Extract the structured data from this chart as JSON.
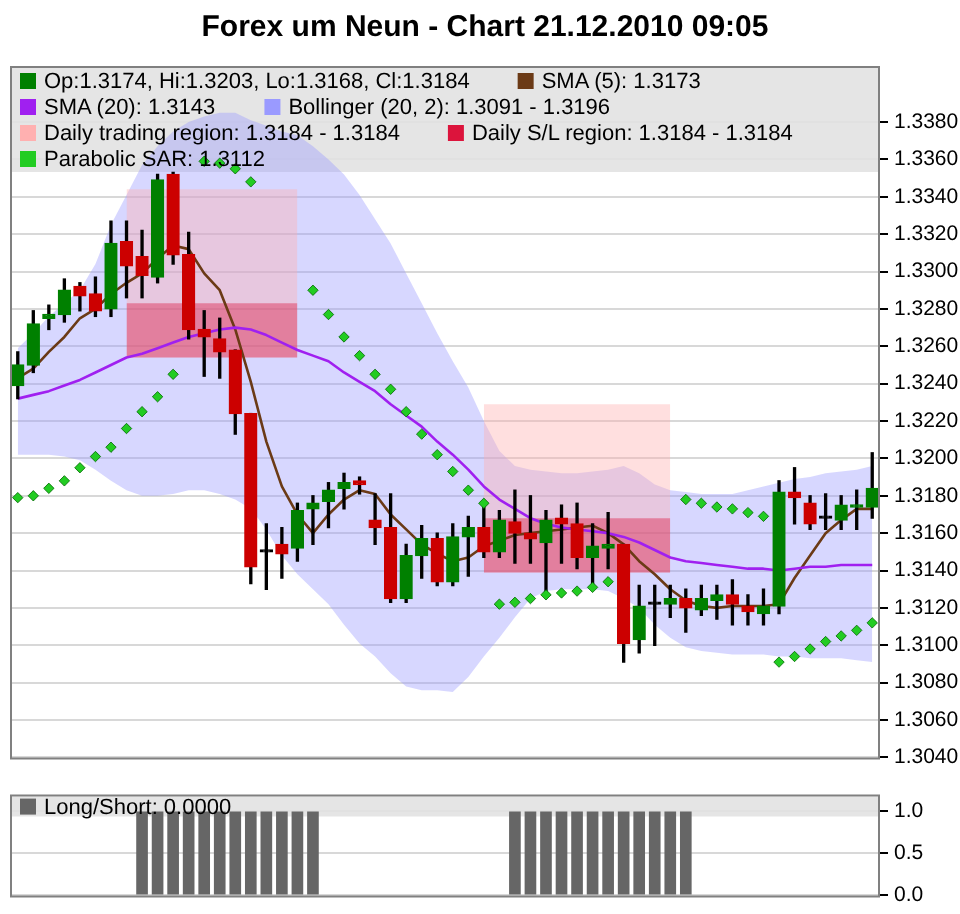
{
  "chart_data": [
    {
      "type": "candlestick",
      "title": "Forex um Neun - Chart 21.12.2010 09:05",
      "categories": [
        null,
        null,
        null,
        null,
        null,
        null,
        null,
        null,
        null,
        null,
        null,
        null,
        null,
        null,
        null,
        null,
        null,
        null,
        null,
        null,
        null,
        null,
        null,
        null,
        null,
        null,
        null,
        null,
        null,
        null,
        null,
        null,
        null,
        null,
        null,
        null,
        null,
        null,
        null,
        null,
        null,
        null,
        null,
        null,
        null,
        null,
        null,
        null,
        null,
        null,
        null,
        null,
        null,
        null,
        null,
        null
      ],
      "series": [
        {
          "type": "candlestick",
          "name": "Op:1.3174, Hi:1.3203, Lo:1.3168, Cl:1.3184",
          "color": "#008000",
          "colors": [
            "#008000",
            "#008000",
            "#008000",
            "#008000",
            "#cc0000",
            "#cc0000",
            "#008000",
            "#cc0000",
            "#cc0000",
            "#008000",
            "#cc0000",
            "#cc0000",
            "#cc0000",
            "#cc0000",
            "#cc0000",
            "#cc0000",
            "#000000",
            "#cc0000",
            "#008000",
            "#008000",
            "#008000",
            "#008000",
            "#cc0000",
            "#cc0000",
            "#cc0000",
            "#008000",
            "#008000",
            "#cc0000",
            "#008000",
            "#008000",
            "#cc0000",
            "#008000",
            "#cc0000",
            "#cc0000",
            "#008000",
            "#cc0000",
            "#cc0000",
            "#008000",
            "#008000",
            "#cc0000",
            "#008000",
            "#000000",
            "#008000",
            "#cc0000",
            "#008000",
            "#008000",
            "#cc0000",
            "#cc0000",
            "#008000",
            "#008000",
            "#cc0000",
            "#cc0000",
            "#000000",
            "#008000",
            "#008000",
            "#008000"
          ],
          "ohlc": [
            [
              1.3239,
              1.3257,
              1.3232,
              1.325
            ],
            [
              1.325,
              1.3279,
              1.3246,
              1.3272
            ],
            [
              1.3275,
              1.3282,
              1.3269,
              1.3277
            ],
            [
              1.3277,
              1.3296,
              1.3273,
              1.329
            ],
            [
              1.3292,
              1.3294,
              1.3279,
              1.3287
            ],
            [
              1.3288,
              1.3297,
              1.3276,
              1.3279
            ],
            [
              1.328,
              1.3327,
              1.3276,
              1.3315
            ],
            [
              1.3316,
              1.3327,
              1.3286,
              1.3303
            ],
            [
              1.3308,
              1.3322,
              1.3286,
              1.3298
            ],
            [
              1.3297,
              1.3352,
              1.3294,
              1.3349
            ],
            [
              1.3352,
              1.3353,
              1.3304,
              1.3309
            ],
            [
              1.3309,
              1.3321,
              1.3264,
              1.3269
            ],
            [
              1.3269,
              1.3279,
              1.3244,
              1.3265
            ],
            [
              1.3264,
              1.3275,
              1.3243,
              1.3257
            ],
            [
              1.3258,
              1.3258,
              1.3213,
              1.3224
            ],
            [
              1.3224,
              1.3224,
              1.3133,
              1.3142
            ],
            [
              1.315,
              1.3165,
              1.313,
              1.315
            ],
            [
              1.3154,
              1.3163,
              1.3136,
              1.3149
            ],
            [
              1.3152,
              1.3176,
              1.3145,
              1.3172
            ],
            [
              1.3173,
              1.318,
              1.3154,
              1.3176
            ],
            [
              1.3177,
              1.3187,
              1.3163,
              1.3183
            ],
            [
              1.3184,
              1.3192,
              1.3173,
              1.3187
            ],
            [
              1.3188,
              1.319,
              1.3181,
              1.3186
            ],
            [
              1.3167,
              1.3181,
              1.3154,
              1.3163
            ],
            [
              1.3163,
              1.3181,
              1.3123,
              1.3125
            ],
            [
              1.3125,
              1.3154,
              1.3123,
              1.3148
            ],
            [
              1.3148,
              1.3164,
              1.3136,
              1.3157
            ],
            [
              1.3157,
              1.316,
              1.3132,
              1.3134
            ],
            [
              1.3134,
              1.3165,
              1.3132,
              1.3158
            ],
            [
              1.3158,
              1.3169,
              1.3137,
              1.3163
            ],
            [
              1.3163,
              1.3176,
              1.3147,
              1.315
            ],
            [
              1.315,
              1.3172,
              1.3147,
              1.3167
            ],
            [
              1.3166,
              1.3183,
              1.3144,
              1.316
            ],
            [
              1.316,
              1.318,
              1.3144,
              1.3157
            ],
            [
              1.3155,
              1.3172,
              1.3128,
              1.3167
            ],
            [
              1.3168,
              1.3175,
              1.3144,
              1.3165
            ],
            [
              1.3165,
              1.3176,
              1.3141,
              1.3147
            ],
            [
              1.3147,
              1.3165,
              1.3132,
              1.3153
            ],
            [
              1.3152,
              1.3171,
              1.3141,
              1.3154
            ],
            [
              1.3154,
              1.3154,
              1.3091,
              1.3101
            ],
            [
              1.3103,
              1.3132,
              1.3096,
              1.3121
            ],
            [
              1.3122,
              1.3132,
              1.31,
              1.3122
            ],
            [
              1.3122,
              1.3132,
              1.3115,
              1.3125
            ],
            [
              1.3125,
              1.313,
              1.3107,
              1.312
            ],
            [
              1.3119,
              1.3132,
              1.3116,
              1.3125
            ],
            [
              1.3124,
              1.3132,
              1.3114,
              1.3127
            ],
            [
              1.3127,
              1.3135,
              1.3111,
              1.3122
            ],
            [
              1.3121,
              1.3127,
              1.3111,
              1.3118
            ],
            [
              1.3117,
              1.313,
              1.3111,
              1.3121
            ],
            [
              1.3121,
              1.3188,
              1.3117,
              1.3182
            ],
            [
              1.3182,
              1.3195,
              1.3165,
              1.3179
            ],
            [
              1.3176,
              1.318,
              1.3162,
              1.3165
            ],
            [
              1.3168,
              1.3181,
              1.3162,
              1.3168
            ],
            [
              1.3167,
              1.318,
              1.3162,
              1.3175
            ],
            [
              1.3174,
              1.3183,
              1.3162,
              1.3175
            ],
            [
              1.3174,
              1.3203,
              1.3168,
              1.3184
            ]
          ]
        },
        {
          "type": "line",
          "name": "SMA (5): 1.3173",
          "color": "#6b3a16",
          "values": [
            1.3243,
            1.3248,
            1.3257,
            1.3265,
            1.3275,
            1.328,
            1.3288,
            1.3294,
            1.3299,
            1.3307,
            1.3314,
            1.3312,
            1.3299,
            1.329,
            1.3269,
            1.3241,
            1.3209,
            1.3185,
            1.317,
            1.316,
            1.317,
            1.3178,
            1.3183,
            1.3181,
            1.317,
            1.3162,
            1.3154,
            1.3149,
            1.3145,
            1.3147,
            1.3153,
            1.3156,
            1.3159,
            1.316,
            1.3161,
            1.3162,
            1.3163,
            1.3164,
            1.316,
            1.3154,
            1.3145,
            1.3138,
            1.313,
            1.3124,
            1.3121,
            1.312,
            1.3121,
            1.3121,
            1.3121,
            1.3122,
            1.3136,
            1.3148,
            1.316,
            1.3167,
            1.3173,
            1.3173
          ]
        },
        {
          "type": "line",
          "name": "SMA (20): 1.3143",
          "color": "#a020f0",
          "values": [
            1.3232,
            1.3234,
            1.3236,
            1.3239,
            1.3242,
            1.3246,
            1.325,
            1.3254,
            1.3256,
            1.3259,
            1.3262,
            1.3265,
            1.3267,
            1.3269,
            1.327,
            1.3269,
            1.3266,
            1.3262,
            1.3258,
            1.3255,
            1.3252,
            1.3246,
            1.3241,
            1.3236,
            1.3229,
            1.3223,
            1.3217,
            1.3209,
            1.3202,
            1.3194,
            1.3185,
            1.3178,
            1.3173,
            1.3168,
            1.3165,
            1.3163,
            1.3162,
            1.3161,
            1.316,
            1.3158,
            1.3155,
            1.3151,
            1.3147,
            1.3145,
            1.3144,
            1.3143,
            1.3142,
            1.3141,
            1.3141,
            1.314,
            1.3141,
            1.3142,
            1.3142,
            1.3143,
            1.3143,
            1.3143
          ]
        },
        {
          "type": "line",
          "name": "Bollinger (20, 2): 1.3091 - 1.3196",
          "color": "#9a9aff",
          "values": [
            null,
            null,
            null,
            null,
            null,
            null,
            null,
            null,
            null,
            null,
            null,
            null,
            null,
            null,
            null,
            null,
            null,
            null,
            null,
            null,
            null,
            null,
            null,
            null,
            null,
            null,
            null,
            null,
            null,
            null,
            null,
            null,
            null,
            null,
            null,
            null,
            null,
            null,
            null,
            null,
            null,
            null,
            null,
            null,
            null,
            null,
            null,
            null,
            null,
            null,
            null,
            null,
            null,
            null,
            null,
            null
          ],
          "upper": [
            1.3259,
            1.3267,
            1.3276,
            1.3283,
            1.329,
            1.3304,
            1.3325,
            1.3341,
            1.3357,
            1.3367,
            1.3375,
            1.338,
            1.3383,
            1.3385,
            1.3385,
            1.3381,
            1.3378,
            1.3375,
            1.3373,
            1.3367,
            1.336,
            1.3352,
            1.3341,
            1.3328,
            1.3315,
            1.3299,
            1.3283,
            1.3267,
            1.3252,
            1.3238,
            1.322,
            1.3204,
            1.3196,
            1.3194,
            1.3193,
            1.3192,
            1.3192,
            1.3193,
            1.3194,
            1.3196,
            1.3192,
            1.3186,
            1.3183,
            1.3182,
            1.3181,
            1.3181,
            1.3181,
            1.3183,
            1.3185,
            1.3187,
            1.3189,
            1.319,
            1.3192,
            1.3193,
            1.3194,
            1.3196
          ],
          "lower": [
            1.3202,
            1.3202,
            1.3202,
            1.3201,
            1.3199,
            1.3194,
            1.3188,
            1.3183,
            1.318,
            1.318,
            1.3181,
            1.3183,
            1.3183,
            1.3181,
            1.3178,
            1.3173,
            1.3162,
            1.3148,
            1.3138,
            1.313,
            1.3122,
            1.3111,
            1.3101,
            1.3094,
            1.3085,
            1.3078,
            1.3076,
            1.3076,
            1.3075,
            1.3083,
            1.3094,
            1.3104,
            1.3115,
            1.3125,
            1.3129,
            1.313,
            1.313,
            1.313,
            1.3129,
            1.3125,
            1.312,
            1.3111,
            1.3104,
            1.3099,
            1.3097,
            1.3096,
            1.3095,
            1.3095,
            1.3095,
            1.3094,
            1.3094,
            1.3093,
            1.3093,
            1.3093,
            1.3092,
            1.3091
          ]
        },
        {
          "type": "line",
          "name": "Daily trading region: 1.3184 - 1.3184",
          "color": "#ffb0b0",
          "values": [
            null,
            null,
            null,
            null,
            null,
            null,
            null,
            null,
            null,
            null,
            null,
            null,
            null,
            null,
            null,
            null,
            null,
            null,
            null,
            null,
            null,
            null,
            null,
            null,
            null,
            null,
            null,
            null,
            null,
            null,
            null,
            null,
            null,
            null,
            null,
            null,
            null,
            null,
            null,
            null,
            null,
            null,
            null,
            null,
            null,
            null,
            null,
            null,
            null,
            null,
            null,
            null,
            null,
            null,
            null,
            null
          ],
          "upper": [
            null,
            null,
            null,
            null,
            null,
            null,
            null,
            1.3344,
            1.3344,
            1.3344,
            1.3344,
            1.3344,
            1.3344,
            1.3344,
            1.3344,
            1.3344,
            1.3344,
            1.3344,
            1.3344,
            null,
            null,
            null,
            null,
            null,
            null,
            null,
            null,
            null,
            null,
            null,
            1.3229,
            1.3229,
            1.3229,
            1.3229,
            1.3229,
            1.3229,
            1.3229,
            1.3229,
            1.3229,
            1.3229,
            1.3229,
            1.3229,
            1.3229,
            null,
            null,
            null,
            null,
            null,
            null,
            null,
            null,
            null,
            null,
            null,
            null,
            null
          ],
          "lower": [
            null,
            null,
            null,
            null,
            null,
            null,
            null,
            1.3254,
            1.3254,
            1.3254,
            1.3254,
            1.3254,
            1.3254,
            1.3254,
            1.3254,
            1.3254,
            1.3254,
            1.3254,
            1.3254,
            null,
            null,
            null,
            null,
            null,
            null,
            null,
            null,
            null,
            null,
            null,
            1.3139,
            1.3139,
            1.3139,
            1.3139,
            1.3139,
            1.3139,
            1.3139,
            1.3139,
            1.3139,
            1.3139,
            1.3139,
            1.3139,
            1.3139,
            null,
            null,
            null,
            null,
            null,
            null,
            null,
            null,
            null,
            null,
            null,
            null,
            null
          ]
        },
        {
          "type": "line",
          "name": "Daily S/L region: 1.3184 - 1.3184",
          "color": "#dc143c",
          "values": [
            null,
            null,
            null,
            null,
            null,
            null,
            null,
            null,
            null,
            null,
            null,
            null,
            null,
            null,
            null,
            null,
            null,
            null,
            null,
            null,
            null,
            null,
            null,
            null,
            null,
            null,
            null,
            null,
            null,
            null,
            null,
            null,
            null,
            null,
            null,
            null,
            null,
            null,
            null,
            null,
            null,
            null,
            null,
            null,
            null,
            null,
            null,
            null,
            null,
            null,
            null,
            null,
            null,
            null,
            null,
            null
          ],
          "upper": [
            null,
            null,
            null,
            null,
            null,
            null,
            null,
            1.3283,
            1.3283,
            1.3283,
            1.3283,
            1.3283,
            1.3283,
            1.3283,
            1.3283,
            1.3283,
            1.3283,
            1.3283,
            1.3283,
            null,
            null,
            null,
            null,
            null,
            null,
            null,
            null,
            null,
            null,
            null,
            1.3168,
            1.3168,
            1.3168,
            1.3168,
            1.3168,
            1.3168,
            1.3168,
            1.3168,
            1.3168,
            1.3168,
            1.3168,
            1.3168,
            1.3168,
            null,
            null,
            null,
            null,
            null,
            null,
            null,
            null,
            null,
            null,
            null,
            null,
            null
          ],
          "lower": [
            null,
            null,
            null,
            null,
            null,
            null,
            null,
            1.3254,
            1.3254,
            1.3254,
            1.3254,
            1.3254,
            1.3254,
            1.3254,
            1.3254,
            1.3254,
            1.3254,
            1.3254,
            1.3254,
            null,
            null,
            null,
            null,
            null,
            null,
            null,
            null,
            null,
            null,
            null,
            1.3139,
            1.3139,
            1.3139,
            1.3139,
            1.3139,
            1.3139,
            1.3139,
            1.3139,
            1.3139,
            1.3139,
            1.3139,
            1.3139,
            1.3139,
            null,
            null,
            null,
            null,
            null,
            null,
            null,
            null,
            null,
            null,
            null,
            null,
            null
          ]
        },
        {
          "type": "scatter",
          "name": "Parabolic SAR: 1.3112",
          "color": "#22cc22",
          "marker": "diamond",
          "values": [
            1.3179,
            1.318,
            1.3184,
            1.3188,
            1.3195,
            1.3201,
            1.3206,
            1.3216,
            1.3225,
            1.3233,
            1.3245,
            null,
            1.3359,
            1.3358,
            1.3355,
            1.3348,
            null,
            null,
            null,
            1.329,
            1.3277,
            1.3265,
            1.3255,
            1.3245,
            1.3237,
            1.3225,
            1.3213,
            1.3202,
            1.3193,
            1.3183,
            1.3176,
            1.3122,
            1.3123,
            1.3125,
            1.3127,
            1.3128,
            1.3129,
            1.3131,
            1.3134,
            null,
            null,
            null,
            null,
            1.3178,
            1.3176,
            1.3174,
            1.3173,
            1.3171,
            1.3169,
            1.3091,
            1.3094,
            1.3098,
            1.3102,
            1.3105,
            1.3108,
            1.3112
          ]
        }
      ],
      "ylim": [
        1.304,
        1.341
      ],
      "yticks": [
        {
          "value": 1.304,
          "label": "1.3040"
        },
        {
          "value": 1.306,
          "label": "1.3060"
        },
        {
          "value": 1.308,
          "label": "1.3080"
        },
        {
          "value": 1.31,
          "label": "1.3100"
        },
        {
          "value": 1.312,
          "label": "1.3120"
        },
        {
          "value": 1.314,
          "label": "1.3140"
        },
        {
          "value": 1.316,
          "label": "1.3160"
        },
        {
          "value": 1.318,
          "label": "1.3180"
        },
        {
          "value": 1.32,
          "label": "1.3200"
        },
        {
          "value": 1.322,
          "label": "1.3220"
        },
        {
          "value": 1.324,
          "label": "1.3240"
        },
        {
          "value": 1.326,
          "label": "1.3260"
        },
        {
          "value": 1.328,
          "label": "1.3280"
        },
        {
          "value": 1.33,
          "label": "1.3300"
        },
        {
          "value": 1.332,
          "label": "1.3320"
        },
        {
          "value": 1.334,
          "label": "1.3340"
        },
        {
          "value": 1.336,
          "label": "1.3360"
        },
        {
          "value": 1.338,
          "label": "1.3380"
        }
      ],
      "grid": "y",
      "legend": "top",
      "tick_labels": "y"
    },
    {
      "type": "bar",
      "categories": [
        null,
        null,
        null,
        null,
        null,
        null,
        null,
        null,
        null,
        null,
        null,
        null,
        null,
        null,
        null,
        null,
        null,
        null,
        null,
        null,
        null,
        null,
        null,
        null,
        null,
        null,
        null,
        null,
        null,
        null,
        null,
        null,
        null,
        null,
        null,
        null,
        null,
        null,
        null,
        null,
        null,
        null,
        null,
        null,
        null,
        null,
        null,
        null,
        null,
        null,
        null,
        null,
        null,
        null,
        null,
        null
      ],
      "series": [
        {
          "name": "Long/Short: 0.0000",
          "color": "#666666",
          "values": [
            0,
            0,
            0,
            0,
            0,
            0,
            0,
            0,
            1,
            1,
            1,
            1,
            1,
            1,
            1,
            1,
            1,
            1,
            1,
            1,
            0,
            0,
            0,
            0,
            0,
            0,
            0,
            0,
            0,
            0,
            0,
            0,
            1,
            1,
            1,
            1,
            1,
            1,
            1,
            1,
            1,
            1,
            1,
            1,
            0,
            0,
            0,
            0,
            0,
            0,
            0,
            0,
            0,
            0,
            0,
            0
          ]
        }
      ],
      "ylim": [
        0,
        1.2
      ],
      "yticks": [
        {
          "value": 0,
          "label": "0.0"
        },
        {
          "value": 0.5,
          "label": "0.5"
        },
        {
          "value": 1,
          "label": "1.0"
        }
      ],
      "grid": "y",
      "legend": "top",
      "tick_labels": "y"
    }
  ]
}
